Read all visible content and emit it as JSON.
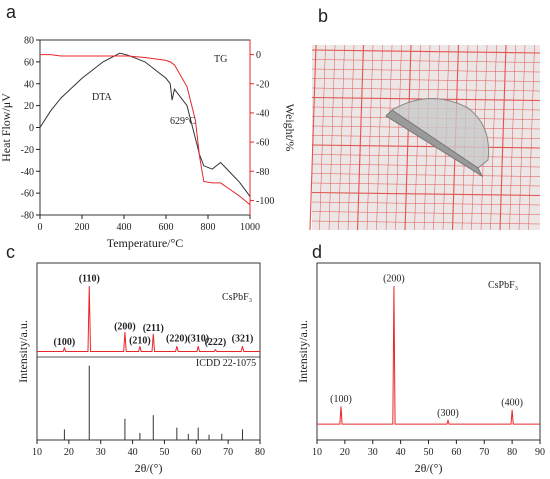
{
  "panels": [
    "a",
    "b",
    "c",
    "d"
  ],
  "chart_data": [
    {
      "type": "line",
      "xlabel": "Temperature/°C",
      "ylabel": "Heat Flow/μV",
      "y2label": "Weight/%",
      "x": [
        0,
        50,
        100,
        200,
        300,
        380,
        420,
        500,
        600,
        620,
        629,
        640,
        700,
        740,
        760,
        780,
        820,
        860,
        900,
        950,
        1000
      ],
      "series": [
        {
          "name": "DTA",
          "color": "#333333",
          "values": [
            0,
            15,
            27,
            45,
            60,
            68,
            66,
            60,
            45,
            40,
            25,
            35,
            20,
            -10,
            -25,
            -35,
            -38,
            -32,
            -40,
            -50,
            -63
          ]
        },
        {
          "name": "TG",
          "color": "#e8262a",
          "axis": "y2",
          "values": [
            0,
            0,
            -1,
            -1,
            -1,
            -1,
            -1,
            -2,
            -4,
            -5,
            -6,
            -7,
            -22,
            -45,
            -70,
            -87,
            -88,
            -88,
            -92,
            -97,
            -103
          ]
        }
      ],
      "annotations": [
        "629°C"
      ],
      "xlim": [
        0,
        1000
      ],
      "xticks": [
        0,
        200,
        400,
        600,
        800,
        1000
      ],
      "ylim": [
        -80,
        80
      ],
      "yticks": [
        -80,
        -60,
        -40,
        -20,
        0,
        20,
        40,
        60,
        80
      ],
      "y2lim": [
        -110,
        10
      ],
      "y2ticks": [
        -100,
        -80,
        -60,
        -40,
        -20,
        0
      ]
    },
    {
      "type": "line",
      "xlabel": "2θ/(°)",
      "ylabel": "Intensity/a.u.",
      "x": [
        10,
        18.2,
        18.6,
        19,
        26,
        26.4,
        26.8,
        37.2,
        37.6,
        38,
        41.9,
        42.3,
        42.7,
        46.1,
        46.5,
        46.9,
        53.5,
        53.9,
        54.3,
        60.2,
        60.6,
        61,
        65.6,
        66,
        66.4,
        74.1,
        74.5,
        74.9,
        80
      ],
      "series": [
        {
          "name": "CsPbF₃",
          "color": "#e8262a",
          "values": [
            50,
            50,
            52,
            50,
            50,
            87,
            50,
            50,
            61,
            50,
            50,
            53,
            50,
            50,
            60,
            50,
            50,
            53,
            50,
            50,
            53,
            50,
            50,
            51,
            50,
            50,
            53,
            50,
            50
          ]
        }
      ],
      "reference": {
        "name": "ICDD 22-1075",
        "color": "#333333",
        "x": [
          18.6,
          26.4,
          37.6,
          42.3,
          46.5,
          53.9,
          57.5,
          60.6,
          64,
          68,
          74.5
        ],
        "values": [
          6,
          42,
          12,
          4,
          14,
          7,
          3.5,
          7,
          3,
          3.5,
          6
        ]
      },
      "annotations": [
        {
          "text": "(100)",
          "x": 18.6,
          "y": 53
        },
        {
          "text": "(110)",
          "x": 26.4,
          "y": 89
        },
        {
          "text": "(200)",
          "x": 37.6,
          "y": 62
        },
        {
          "text": "(210)",
          "x": 42.3,
          "y": 54
        },
        {
          "text": "(211)",
          "x": 46.5,
          "y": 61
        },
        {
          "text": "(220)",
          "x": 53.9,
          "y": 55
        },
        {
          "text": "(310)",
          "x": 60.6,
          "y": 55
        },
        {
          "text": "(222)",
          "x": 66,
          "y": 53
        },
        {
          "text": "(321)",
          "x": 74.5,
          "y": 55
        }
      ],
      "xlim": [
        10,
        80
      ],
      "xticks": [
        10,
        20,
        30,
        40,
        50,
        60,
        70,
        80
      ],
      "ylim": [
        0,
        100
      ]
    },
    {
      "type": "line",
      "xlabel": "2θ/(°)",
      "ylabel": "Intensity/a.u.",
      "x": [
        10,
        18.2,
        18.6,
        19,
        37.2,
        37.6,
        38,
        56.6,
        57,
        57.4,
        79.6,
        80,
        80.4,
        90
      ],
      "series": [
        {
          "name": "CsPbF₃",
          "color": "#e8262a",
          "values": [
            9,
            9,
            19,
            9,
            9,
            87,
            9,
            9,
            11,
            9,
            9,
            17,
            9,
            9
          ]
        }
      ],
      "annotations": [
        {
          "text": "(100)",
          "x": 18.6,
          "y": 21
        },
        {
          "text": "(200)",
          "x": 37.6,
          "y": 89
        },
        {
          "text": "(300)",
          "x": 57,
          "y": 13
        },
        {
          "text": "(400)",
          "x": 80,
          "y": 19
        }
      ],
      "xlim": [
        10,
        90
      ],
      "xticks": [
        10,
        20,
        30,
        40,
        50,
        60,
        70,
        80,
        90
      ],
      "ylim": [
        0,
        100
      ]
    }
  ]
}
